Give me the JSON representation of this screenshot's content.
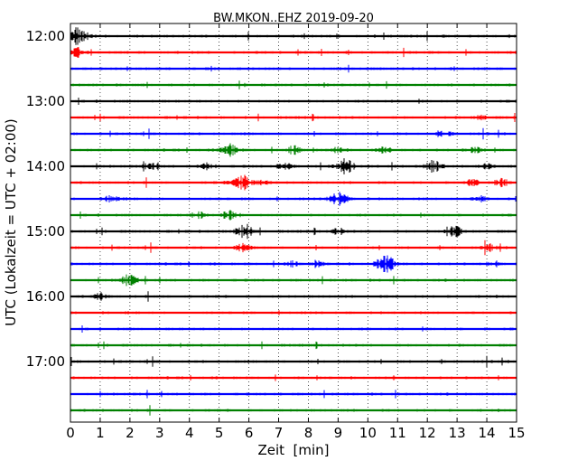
{
  "chart_data": {
    "type": "line",
    "title": "BW.MKON..EHZ 2019-09-20",
    "xlabel": "Zeit  [min]",
    "ylabel": "UTC (Lokalzeit = UTC + 02:00)",
    "xlim": [
      0,
      15
    ],
    "xticks": [
      "0",
      "1",
      "2",
      "3",
      "4",
      "5",
      "6",
      "7",
      "8",
      "9",
      "10",
      "11",
      "12",
      "13",
      "14",
      "15"
    ],
    "yticks": [
      "12:00",
      "13:00",
      "14:00",
      "15:00",
      "16:00",
      "17:00"
    ],
    "grid": "vertical dotted",
    "trace_interval_min": 15,
    "trace_colors": [
      "#000000",
      "#ff0000",
      "#0000ff",
      "#008000"
    ],
    "traces": [
      {
        "start": "12:00",
        "events": [
          [
            0.15,
            1.0
          ]
        ]
      },
      {
        "start": "12:15",
        "events": [
          [
            0.15,
            0.5
          ]
        ]
      },
      {
        "start": "12:30",
        "events": []
      },
      {
        "start": "12:45",
        "events": []
      },
      {
        "start": "13:00",
        "events": []
      },
      {
        "start": "13:15",
        "events": [
          [
            13.8,
            0.25
          ]
        ]
      },
      {
        "start": "13:30",
        "events": [
          [
            12.6,
            0.3
          ]
        ]
      },
      {
        "start": "13:45",
        "events": [
          [
            5.35,
            0.55
          ],
          [
            7.5,
            0.4
          ],
          [
            9.0,
            0.25
          ],
          [
            10.5,
            0.25
          ],
          [
            13.6,
            0.3
          ]
        ]
      },
      {
        "start": "14:00",
        "events": [
          [
            2.7,
            0.35
          ],
          [
            4.6,
            0.35
          ],
          [
            7.2,
            0.35
          ],
          [
            9.25,
            0.7
          ],
          [
            12.2,
            0.55
          ],
          [
            14.0,
            0.25
          ]
        ]
      },
      {
        "start": "14:15",
        "events": [
          [
            5.75,
            0.8
          ],
          [
            6.5,
            0.3
          ],
          [
            13.5,
            0.3
          ],
          [
            14.5,
            0.4
          ]
        ]
      },
      {
        "start": "14:30",
        "events": [
          [
            1.4,
            0.35
          ],
          [
            9.0,
            0.65
          ],
          [
            13.8,
            0.3
          ]
        ]
      },
      {
        "start": "14:45",
        "events": [
          [
            4.3,
            0.35
          ],
          [
            5.35,
            0.5
          ]
        ]
      },
      {
        "start": "15:00",
        "events": [
          [
            5.85,
            0.7
          ],
          [
            12.85,
            0.6
          ],
          [
            9.0,
            0.3
          ]
        ]
      },
      {
        "start": "15:15",
        "events": [
          [
            5.8,
            0.4
          ],
          [
            14.1,
            0.3
          ]
        ]
      },
      {
        "start": "15:30",
        "events": [
          [
            7.4,
            0.3
          ],
          [
            8.3,
            0.25
          ],
          [
            10.6,
            0.8
          ],
          [
            14.2,
            0.25
          ]
        ]
      },
      {
        "start": "15:45",
        "events": [
          [
            1.95,
            0.5
          ]
        ]
      },
      {
        "start": "16:00",
        "events": [
          [
            1.0,
            0.3
          ]
        ]
      },
      {
        "start": "16:15",
        "events": []
      },
      {
        "start": "16:30",
        "events": []
      },
      {
        "start": "16:45",
        "events": []
      },
      {
        "start": "17:00",
        "events": []
      },
      {
        "start": "17:15",
        "events": []
      },
      {
        "start": "17:30",
        "events": []
      },
      {
        "start": "17:45",
        "events": []
      }
    ]
  }
}
